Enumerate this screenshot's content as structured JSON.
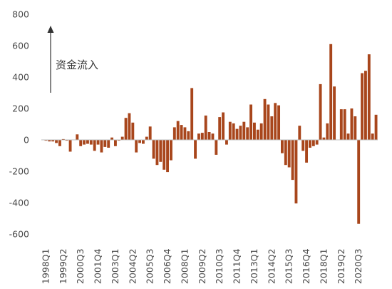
{
  "chart_data": {
    "type": "bar",
    "title": "",
    "xlabel": "",
    "ylabel": "",
    "annotation": "资金流入",
    "ylim": [
      -600,
      800
    ],
    "yticks": [
      800,
      600,
      400,
      200,
      0,
      -200,
      -400,
      -600
    ],
    "grid": false,
    "legend": "none",
    "color": "#a8461c",
    "x_tick_labels": [
      "1998Q1",
      "1999Q2",
      "2000Q3",
      "2001Q4",
      "2003Q1",
      "2004Q2",
      "2005Q3",
      "2006Q4",
      "2008Q1",
      "2009Q2",
      "2010Q3",
      "2011Q4",
      "2013Q1",
      "2014Q2",
      "2015Q3",
      "2016Q4",
      "2018Q1",
      "2019Q2",
      "2020Q3"
    ],
    "series": [
      {
        "values": [
          -5,
          -10,
          -10,
          -20,
          -40,
          5,
          -5,
          -75,
          0,
          35,
          -40,
          -30,
          -25,
          -30,
          -70,
          -30,
          -80,
          -45,
          -50,
          15,
          -40,
          -5,
          20,
          140,
          170,
          110,
          -80,
          -20,
          -25,
          20,
          85,
          -120,
          -160,
          -140,
          -190,
          -205,
          -130,
          80,
          120,
          95,
          80,
          55,
          330,
          -120,
          40,
          45,
          155,
          50,
          40,
          -95,
          145,
          175,
          -30,
          115,
          105,
          70,
          90,
          115,
          80,
          225,
          110,
          65,
          105,
          260,
          225,
          150,
          235,
          220,
          -85,
          -160,
          -175,
          -255,
          -405,
          90,
          -70,
          -145,
          -50,
          -40,
          -30,
          355,
          15,
          105,
          610,
          340,
          0,
          195,
          195,
          40,
          200,
          150,
          -535,
          425,
          440,
          545,
          40,
          160
        ]
      }
    ]
  }
}
